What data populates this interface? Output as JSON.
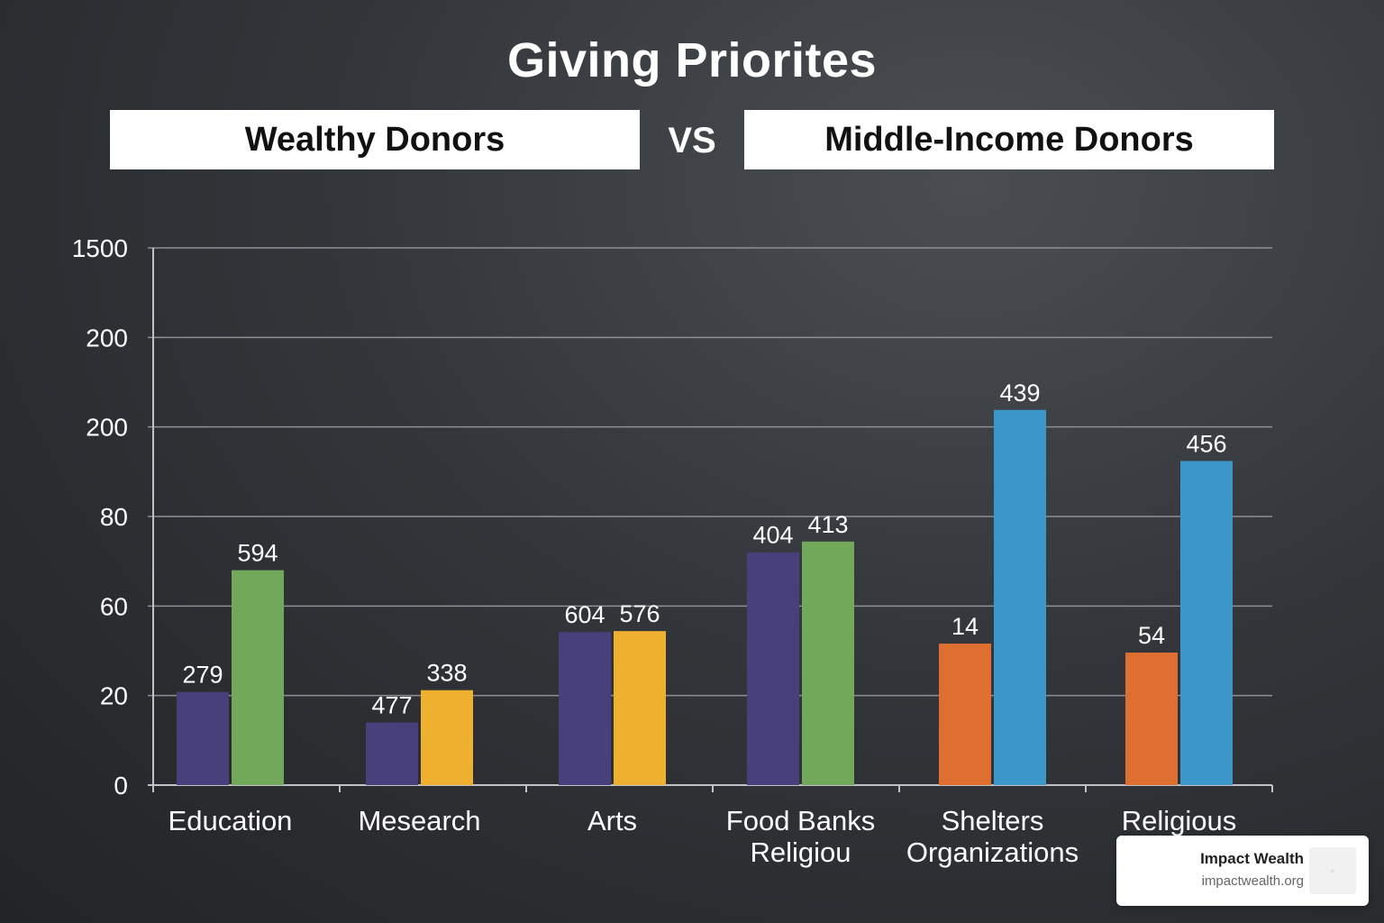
{
  "header": {
    "title": "Giving Priorites",
    "left_label": "Wealthy Donors",
    "vs": "VS",
    "right_label": "Middle-Income Donors"
  },
  "chart_data": {
    "type": "bar",
    "title": "Giving Priorites",
    "y_tick_labels": [
      "0",
      "20",
      "60",
      "80",
      "200",
      "200",
      "1500"
    ],
    "grid": true,
    "categories": [
      [
        "Education"
      ],
      [
        "Mesearch"
      ],
      [
        "Arts"
      ],
      [
        "Food Banks",
        "Religiou"
      ],
      [
        "Shelters",
        "Organizations"
      ],
      [
        "Religious"
      ]
    ],
    "groups": [
      {
        "bars": [
          {
            "label": "279",
            "level": 1.04,
            "color": "#47407a"
          },
          {
            "label": "594",
            "level": 2.4,
            "color": "#72a85a"
          }
        ]
      },
      {
        "bars": [
          {
            "label": "477",
            "level": 0.7,
            "color": "#47407a"
          },
          {
            "label": "338",
            "level": 1.06,
            "color": "#eeb02e"
          }
        ]
      },
      {
        "bars": [
          {
            "label": "604",
            "level": 1.71,
            "color": "#47407a"
          },
          {
            "label": "576",
            "level": 1.72,
            "color": "#eeb02e"
          }
        ]
      },
      {
        "bars": [
          {
            "label": "404",
            "level": 2.6,
            "color": "#47407a"
          },
          {
            "label": "413",
            "level": 2.72,
            "color": "#72a85a"
          }
        ]
      },
      {
        "bars": [
          {
            "label": "14",
            "level": 1.58,
            "color": "#df6f30"
          },
          {
            "label": "439",
            "level": 4.19,
            "color": "#3c98c8"
          }
        ]
      },
      {
        "bars": [
          {
            "label": "54",
            "level": 1.48,
            "color": "#df6f30"
          },
          {
            "label": "456",
            "level": 3.62,
            "color": "#3c98c8"
          }
        ]
      }
    ]
  },
  "watermark": {
    "name": "Impact Wealth",
    "url": "impactwealth.org",
    "logo_icon": "impact-wealth-logo-icon"
  }
}
